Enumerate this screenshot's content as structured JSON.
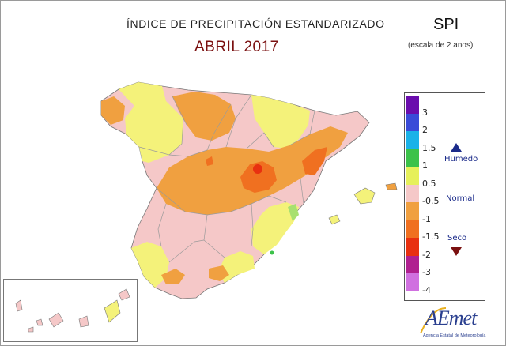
{
  "header": {
    "title": "ÍNDICE DE PRECIPITACIÓN ESTANDARIZADO",
    "subtitle": "ABRIL 2017",
    "index_name": "SPI",
    "index_note": "(escala de 2 anos)"
  },
  "legend": {
    "ticks": [
      "3",
      "2",
      "1.5",
      "1",
      "0.5",
      "-0.5",
      "-1",
      "-1.5",
      "-2",
      "-3",
      "-4"
    ],
    "colors": [
      "#6a0dad",
      "#3a4bd8",
      "#1ab2e8",
      "#3cc24a",
      "#e6f05a",
      "#f5c8c8",
      "#f0a040",
      "#f07020",
      "#e83010",
      "#b02090",
      "#d070e0"
    ],
    "label_wet": "Humedo",
    "label_normal": "Normal",
    "label_dry": "Seco"
  },
  "logo": {
    "name": "AEmet",
    "tagline": "Agencia Estatal de Meteorología"
  },
  "map": {
    "colors": {
      "background_class": "#f5c8c8",
      "yellow": "#f4f27a",
      "orange": "#f0a040",
      "dark_orange": "#f07020",
      "red": "#e83010",
      "green": "#7cd86a",
      "border": "#999999"
    }
  }
}
